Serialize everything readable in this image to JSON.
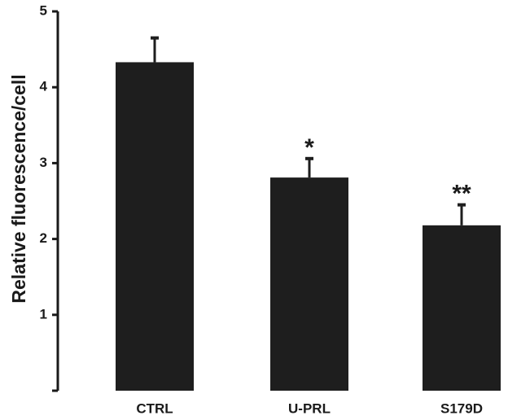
{
  "chart_data": {
    "type": "bar",
    "categories": [
      "CTRL",
      "U-PRL",
      "S179D"
    ],
    "values": [
      4.33,
      2.81,
      2.18
    ],
    "errors": [
      0.32,
      0.25,
      0.27
    ],
    "annotations": [
      "",
      "*",
      "**"
    ],
    "ylabel": "Relative fluorescence/cell",
    "xlabel": "",
    "ylim": [
      0,
      5
    ],
    "yticks": [
      1,
      2,
      3,
      4,
      5
    ],
    "grid": false,
    "colors": {
      "bar": "#1e1e1e",
      "axis": "#1a1a1a"
    }
  }
}
